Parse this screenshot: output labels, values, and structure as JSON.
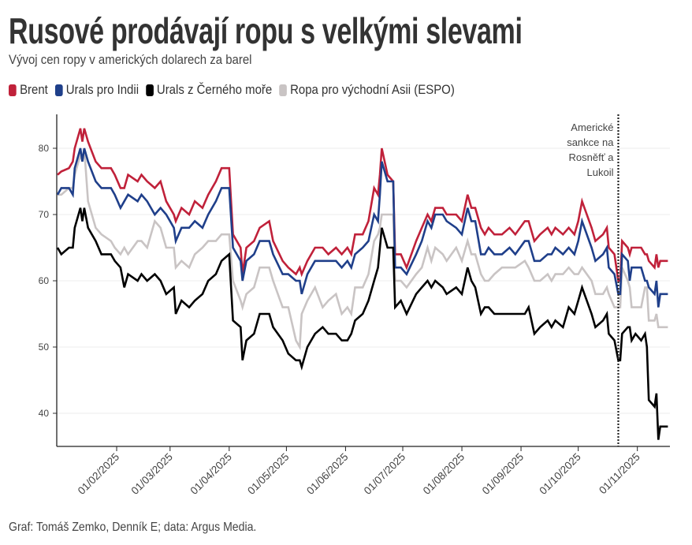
{
  "header": {
    "title": "Rusové prodávají ropu s velkými slevami",
    "subtitle": "Vývoj cen ropy v amerických dolarech za barel"
  },
  "footer": "Graf: Tomáš Zemko, Denník E; data: Argus Media.",
  "chart_data": {
    "type": "line",
    "title": "Rusové prodávají ropu s velkými slevami",
    "subtitle": "Vývoj cen ropy v amerických dolarech za barel",
    "xlabel": "",
    "ylabel": "",
    "ylim": [
      35,
      85
    ],
    "yticks": [
      40,
      50,
      60,
      70,
      80
    ],
    "xlim": [
      "2025-01-01",
      "2025-11-17"
    ],
    "xticks": [
      "01/02/2025",
      "01/03/2025",
      "01/04/2025",
      "01/05/2025",
      "01/06/2025",
      "01/07/2025",
      "01/08/2025",
      "01/09/2025",
      "01/10/2025",
      "01/11/2025"
    ],
    "xtick_dates": [
      "2025-02-01",
      "2025-03-01",
      "2025-04-01",
      "2025-05-01",
      "2025-06-01",
      "2025-07-01",
      "2025-08-01",
      "2025-09-01",
      "2025-10-01",
      "2025-11-01"
    ],
    "grid": "horizontal",
    "legend": "top-left",
    "annotation": {
      "date": "2025-10-22",
      "text": [
        "Americké",
        "sankce na",
        "Rosněfť a",
        "Lukoil"
      ]
    },
    "x": [
      "2025-01-01",
      "2025-01-03",
      "2025-01-07",
      "2025-01-09",
      "2025-01-10",
      "2025-01-13",
      "2025-01-14",
      "2025-01-15",
      "2025-01-17",
      "2025-01-21",
      "2025-01-24",
      "2025-01-29",
      "2025-01-31",
      "2025-02-03",
      "2025-02-05",
      "2025-02-07",
      "2025-02-12",
      "2025-02-14",
      "2025-02-17",
      "2025-02-21",
      "2025-02-24",
      "2025-02-27",
      "2025-03-03",
      "2025-03-04",
      "2025-03-07",
      "2025-03-11",
      "2025-03-14",
      "2025-03-18",
      "2025-03-21",
      "2025-03-25",
      "2025-03-28",
      "2025-04-01",
      "2025-04-03",
      "2025-04-07",
      "2025-04-08",
      "2025-04-10",
      "2025-04-14",
      "2025-04-17",
      "2025-04-22",
      "2025-04-24",
      "2025-04-29",
      "2025-05-02",
      "2025-05-06",
      "2025-05-08",
      "2025-05-09",
      "2025-05-12",
      "2025-05-16",
      "2025-05-20",
      "2025-05-23",
      "2025-05-27",
      "2025-05-30",
      "2025-06-02",
      "2025-06-04",
      "2025-06-06",
      "2025-06-10",
      "2025-06-13",
      "2025-06-16",
      "2025-06-18",
      "2025-06-19",
      "2025-06-20",
      "2025-06-23",
      "2025-06-26",
      "2025-06-27",
      "2025-06-30",
      "2025-07-03",
      "2025-07-08",
      "2025-07-11",
      "2025-07-14",
      "2025-07-16",
      "2025-07-18",
      "2025-07-22",
      "2025-07-24",
      "2025-07-29",
      "2025-08-01",
      "2025-08-04",
      "2025-08-06",
      "2025-08-08",
      "2025-08-11",
      "2025-08-13",
      "2025-08-15",
      "2025-08-18",
      "2025-08-22",
      "2025-08-26",
      "2025-08-29",
      "2025-09-03",
      "2025-09-05",
      "2025-09-08",
      "2025-09-11",
      "2025-09-15",
      "2025-09-17",
      "2025-09-19",
      "2025-09-23",
      "2025-09-26",
      "2025-09-29",
      "2025-10-01",
      "2025-10-03",
      "2025-10-08",
      "2025-10-10",
      "2025-10-14",
      "2025-10-16",
      "2025-10-17",
      "2025-10-20",
      "2025-10-22",
      "2025-10-23",
      "2025-10-24",
      "2025-10-27",
      "2025-10-28",
      "2025-10-29",
      "2025-10-31",
      "2025-11-03",
      "2025-11-05",
      "2025-11-06",
      "2025-11-07",
      "2025-11-10",
      "2025-11-11",
      "2025-11-12",
      "2025-11-13",
      "2025-11-17"
    ],
    "series": [
      {
        "name": "Brent",
        "color": "#c0213a",
        "values": [
          76,
          76.5,
          77,
          78,
          80,
          83,
          81,
          83,
          81,
          78,
          77,
          77,
          76,
          74,
          74,
          76,
          75,
          76,
          75,
          74,
          75,
          72,
          70,
          69,
          71,
          70,
          72,
          71,
          73,
          75,
          77,
          77,
          67,
          65,
          61,
          65,
          66,
          68,
          69,
          66,
          63,
          62,
          61,
          62,
          61,
          63,
          65,
          65,
          64,
          65,
          64,
          65,
          64,
          67,
          67,
          69,
          74,
          73,
          76,
          80,
          76,
          75,
          64,
          64,
          62,
          66,
          68,
          70,
          69,
          71,
          71,
          70,
          70,
          69,
          73,
          71,
          71,
          68,
          67,
          68,
          67,
          67,
          68,
          67,
          69,
          69,
          66,
          67,
          68,
          67,
          68,
          67,
          68,
          67,
          69,
          72,
          68,
          66,
          67,
          68,
          65,
          64,
          60,
          60,
          66,
          65,
          64,
          65,
          65,
          65,
          64,
          64,
          63,
          62,
          64,
          62,
          63,
          63
        ]
      },
      {
        "name": "Urals pro Indii",
        "color": "#1f3f8a",
        "values": [
          73,
          74,
          74,
          73,
          77,
          80,
          78,
          80,
          78,
          75,
          74,
          74,
          73,
          71,
          72,
          73,
          72,
          73,
          72,
          70,
          71,
          70,
          68,
          66,
          68,
          68,
          69,
          68,
          70,
          72,
          74,
          74,
          65,
          63,
          60,
          63,
          64,
          66,
          66,
          64,
          61,
          61,
          60,
          60,
          58,
          61,
          63,
          63,
          63,
          63,
          62,
          63,
          62,
          64,
          65,
          66,
          70,
          69,
          73,
          78,
          75,
          75,
          62,
          62,
          61,
          64,
          66,
          69,
          68,
          70,
          70,
          69,
          68,
          67,
          71,
          69,
          69,
          64,
          64,
          65,
          64,
          64,
          65,
          64,
          66,
          66,
          63,
          63,
          64,
          64,
          65,
          64,
          65,
          64,
          66,
          69,
          65,
          63,
          64,
          65,
          62,
          61,
          58,
          58,
          64,
          63,
          60,
          62,
          62,
          62,
          60,
          60,
          59,
          58,
          60,
          56,
          58,
          58
        ]
      },
      {
        "name": "Urals z Černého moře",
        "color": "#000000",
        "values": [
          65,
          64,
          65,
          65,
          68,
          71,
          69,
          71,
          68,
          66,
          64,
          64,
          63,
          62,
          59,
          61,
          60,
          61,
          60,
          61,
          60,
          58,
          59,
          55,
          57,
          56,
          57,
          58,
          60,
          61,
          63,
          64,
          54,
          53,
          48,
          51,
          52,
          55,
          55,
          53,
          51,
          49,
          48,
          48,
          47,
          50,
          52,
          53,
          52,
          52,
          51,
          51,
          52,
          54,
          55,
          57,
          60,
          62,
          65,
          68,
          65,
          65,
          56,
          57,
          55,
          58,
          59,
          60,
          59,
          60,
          59,
          58,
          59,
          58,
          62,
          60,
          59,
          55,
          56,
          56,
          55,
          55,
          55,
          55,
          55,
          56,
          52,
          53,
          54,
          53,
          54,
          53,
          56,
          55,
          57,
          59,
          55,
          53,
          54,
          55,
          52,
          51,
          48,
          48,
          52,
          53,
          53,
          51,
          52,
          51,
          52,
          50,
          42,
          41,
          43,
          36,
          38,
          38
        ]
      },
      {
        "name": "Ropa pro východní Asii (ESPO)",
        "color": "#c9c4c4",
        "values": [
          73,
          73,
          74,
          74,
          76,
          79,
          78,
          80,
          72,
          68,
          67,
          66,
          65,
          64,
          65,
          64,
          66,
          66,
          65,
          69,
          68,
          65,
          65,
          62,
          63,
          62,
          64,
          65,
          66,
          66,
          67,
          67,
          60,
          57,
          56,
          58,
          59,
          62,
          62,
          60,
          56,
          56,
          51,
          50,
          55,
          57,
          59,
          56,
          57,
          58,
          55,
          56,
          55,
          59,
          59,
          61,
          66,
          67,
          68,
          70,
          70,
          70,
          60,
          60,
          59,
          61,
          62,
          65,
          63,
          65,
          64,
          63,
          65,
          63,
          66,
          64,
          64,
          61,
          60,
          60,
          61,
          62,
          62,
          62,
          63,
          62,
          60,
          60,
          61,
          60,
          61,
          61,
          62,
          61,
          61,
          62,
          60,
          58,
          58,
          59,
          58,
          56,
          56,
          56,
          62,
          60,
          59,
          56,
          56,
          56,
          59,
          59,
          54,
          54,
          55,
          53,
          53,
          53
        ]
      }
    ]
  }
}
